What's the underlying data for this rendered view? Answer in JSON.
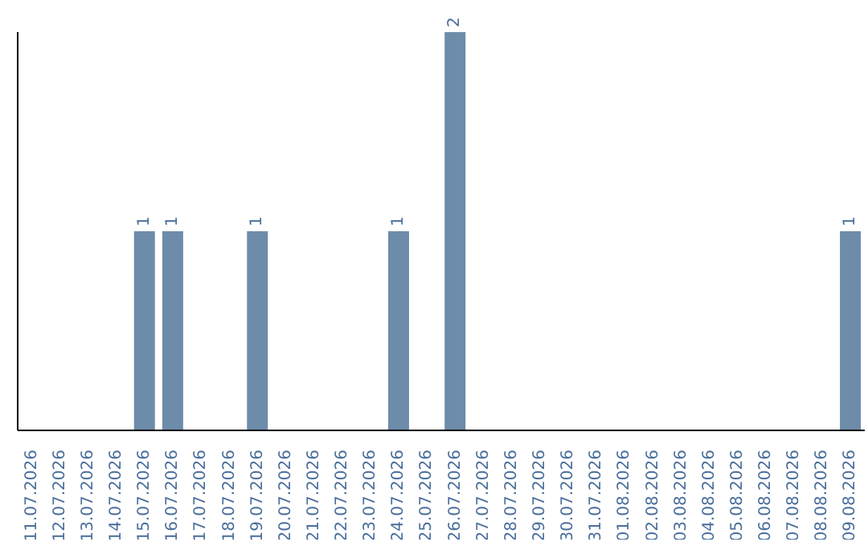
{
  "chart_data": {
    "type": "bar",
    "categories": [
      "11.07.2026",
      "12.07.2026",
      "13.07.2026",
      "14.07.2026",
      "15.07.2026",
      "16.07.2026",
      "17.07.2026",
      "18.07.2026",
      "19.07.2026",
      "20.07.2026",
      "21.07.2026",
      "22.07.2026",
      "23.07.2026",
      "24.07.2026",
      "25.07.2026",
      "26.07.2026",
      "27.07.2026",
      "28.07.2026",
      "29.07.2026",
      "30.07.2026",
      "31.07.2026",
      "01.08.2026",
      "02.08.2026",
      "03.08.2026",
      "04.08.2026",
      "05.08.2026",
      "06.08.2026",
      "07.08.2026",
      "08.08.2026",
      "09.08.2026"
    ],
    "values": [
      0,
      0,
      0,
      0,
      1,
      1,
      0,
      0,
      1,
      0,
      0,
      0,
      0,
      1,
      0,
      2,
      0,
      0,
      0,
      0,
      0,
      0,
      0,
      0,
      0,
      0,
      0,
      0,
      0,
      1
    ],
    "value_labels": [
      null,
      null,
      null,
      null,
      "1",
      "1",
      null,
      null,
      "1",
      null,
      null,
      null,
      null,
      "1",
      null,
      "2",
      null,
      null,
      null,
      null,
      null,
      null,
      null,
      null,
      null,
      null,
      null,
      null,
      null,
      "1"
    ],
    "color": "#6d8ca9"
  }
}
